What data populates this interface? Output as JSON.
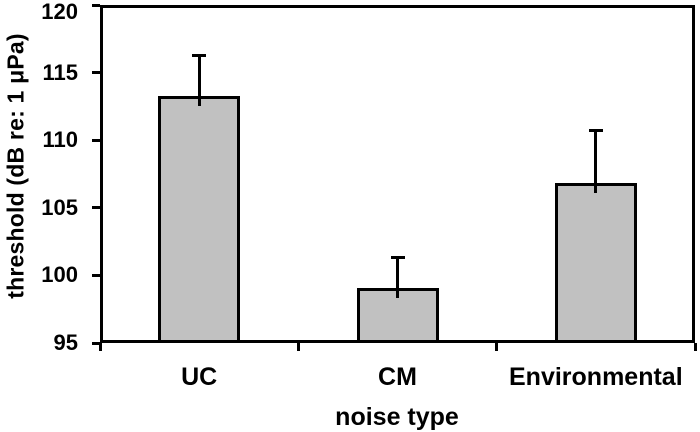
{
  "figure": {
    "background": "#ffffff",
    "line_color": "#000000",
    "text_color": "#000000"
  },
  "chart_data": {
    "type": "bar",
    "title": "",
    "xlabel": "noise type",
    "ylabel": "threshold (dB re: 1 μPa)",
    "categories": [
      "UC",
      "CM",
      "Environmental"
    ],
    "values": [
      113.3,
      99.1,
      106.8
    ],
    "error_plus": [
      3.0,
      2.2,
      3.9
    ],
    "error_direction": "upper",
    "ylim": [
      95,
      120
    ],
    "yticks": [
      95,
      100,
      105,
      110,
      115,
      120
    ],
    "grid": false,
    "legend_position": "none",
    "bar_color": "#c1c1c1",
    "bar_border_color": "#000000"
  }
}
